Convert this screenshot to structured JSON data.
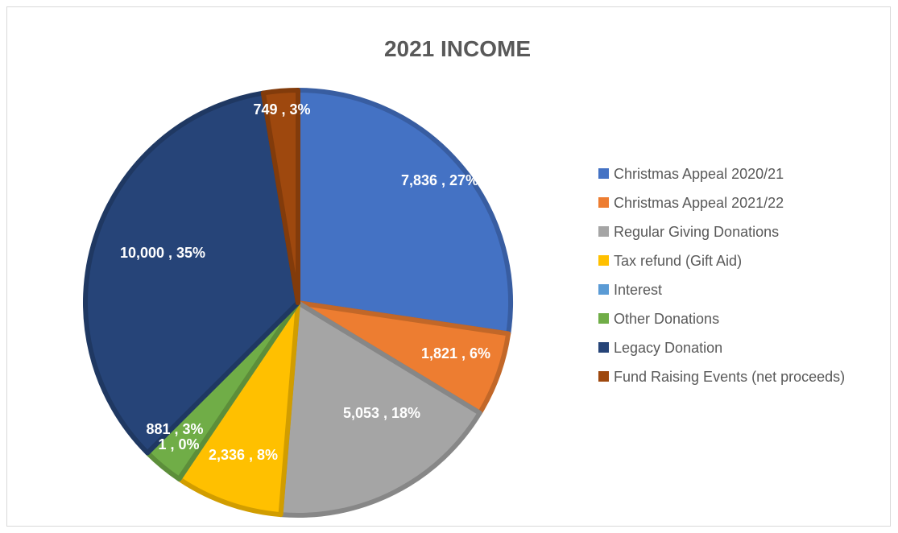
{
  "chart_data": {
    "type": "pie",
    "title": "2021 INCOME",
    "legend_position": "right",
    "slices": [
      {
        "label": "Christmas Appeal 2020/21",
        "value": 7836,
        "value_label": "7,836",
        "percent_label": "27%",
        "color": "#4472C4"
      },
      {
        "label": "Christmas Appeal 2021/22",
        "value": 1821,
        "value_label": "1,821",
        "percent_label": "6%",
        "color": "#ED7D31"
      },
      {
        "label": "Regular Giving Donations",
        "value": 5053,
        "value_label": "5,053",
        "percent_label": "18%",
        "color": "#A5A5A5"
      },
      {
        "label": "Tax refund (Gift Aid)",
        "value": 2336,
        "value_label": "2,336",
        "percent_label": "8%",
        "color": "#FFC000"
      },
      {
        "label": "Interest",
        "value": 1,
        "value_label": "1",
        "percent_label": "0%",
        "color": "#5B9BD5"
      },
      {
        "label": "Other Donations",
        "value": 881,
        "value_label": "881",
        "percent_label": "3%",
        "color": "#70AD47"
      },
      {
        "label": "Legacy Donation",
        "value": 10000,
        "value_label": "10,000",
        "percent_label": "35%",
        "color": "#264478"
      },
      {
        "label": "Fund Raising Events (net proceeds)",
        "value": 749,
        "value_label": "749",
        "percent_label": "3%",
        "color": "#9E480E"
      }
    ]
  }
}
